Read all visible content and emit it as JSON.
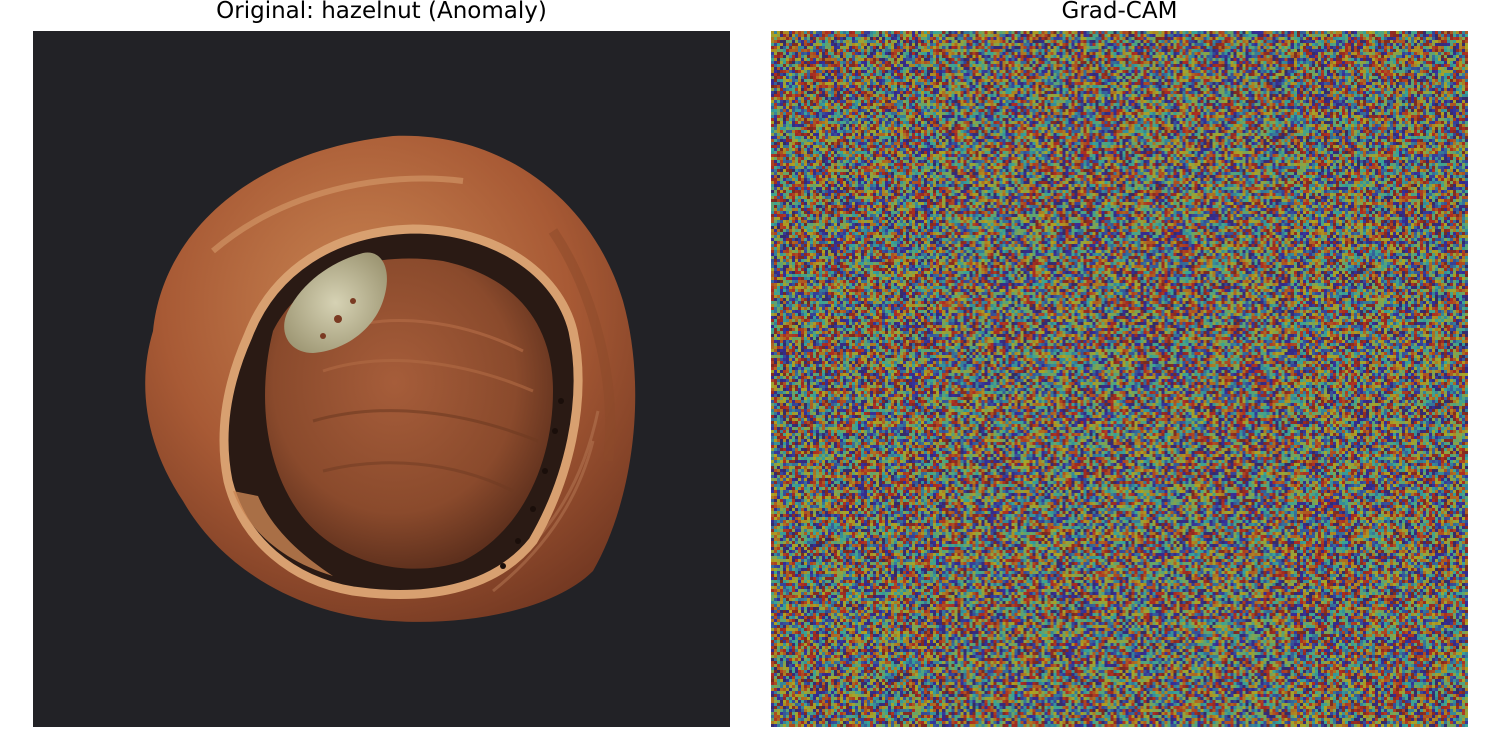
{
  "panels": [
    {
      "title": "Original: hazelnut (Anomaly)",
      "subject": "hazelnut",
      "label": "Anomaly",
      "colors": {
        "background": "#222226",
        "shell": "#a85a35",
        "shell_highlight": "#c98552",
        "kernel": "#8a4a2c",
        "defect": "#bdb894",
        "rim": "#d8a070"
      }
    },
    {
      "title": "Grad-CAM",
      "colormap": "jet",
      "overlay_alpha": 0.45,
      "grid": 232
    }
  ]
}
